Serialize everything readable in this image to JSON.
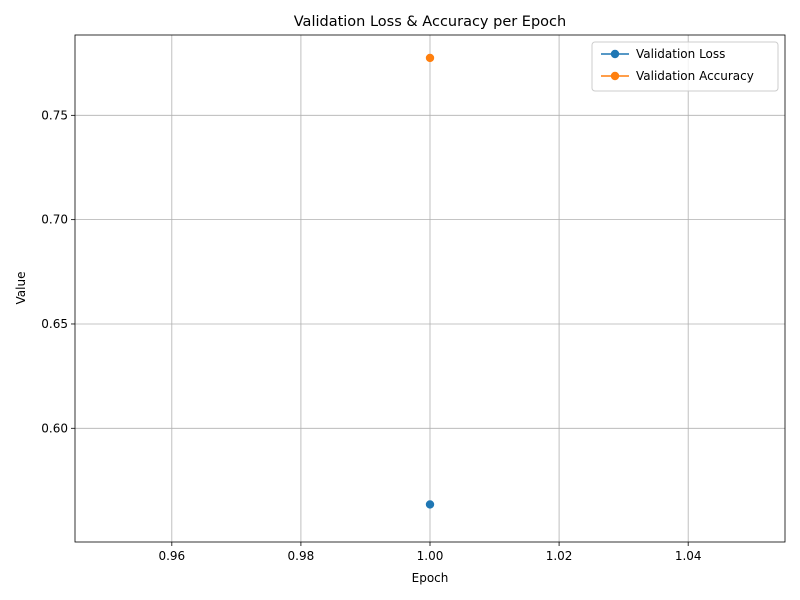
{
  "chart_data": {
    "type": "line",
    "title": "Validation Loss & Accuracy per Epoch",
    "xlabel": "Epoch",
    "ylabel": "Value",
    "xlim": [
      0.945,
      1.055
    ],
    "ylim": [
      0.5455,
      0.7885
    ],
    "x_ticks": [
      0.96,
      0.98,
      1.0,
      1.02,
      1.04
    ],
    "x_tick_labels": [
      "0.96",
      "0.98",
      "1.00",
      "1.02",
      "1.04"
    ],
    "y_ticks": [
      0.6,
      0.65,
      0.7,
      0.75
    ],
    "y_tick_labels": [
      "0.60",
      "0.65",
      "0.70",
      "0.75"
    ],
    "grid": true,
    "legend_position": "upper-right",
    "series": [
      {
        "name": "Validation Loss",
        "color": "#1f77b4",
        "marker": "circle",
        "x": [
          1.0
        ],
        "y": [
          0.5635
        ]
      },
      {
        "name": "Validation Accuracy",
        "color": "#ff7f0e",
        "marker": "circle",
        "x": [
          1.0
        ],
        "y": [
          0.7775
        ]
      }
    ]
  }
}
